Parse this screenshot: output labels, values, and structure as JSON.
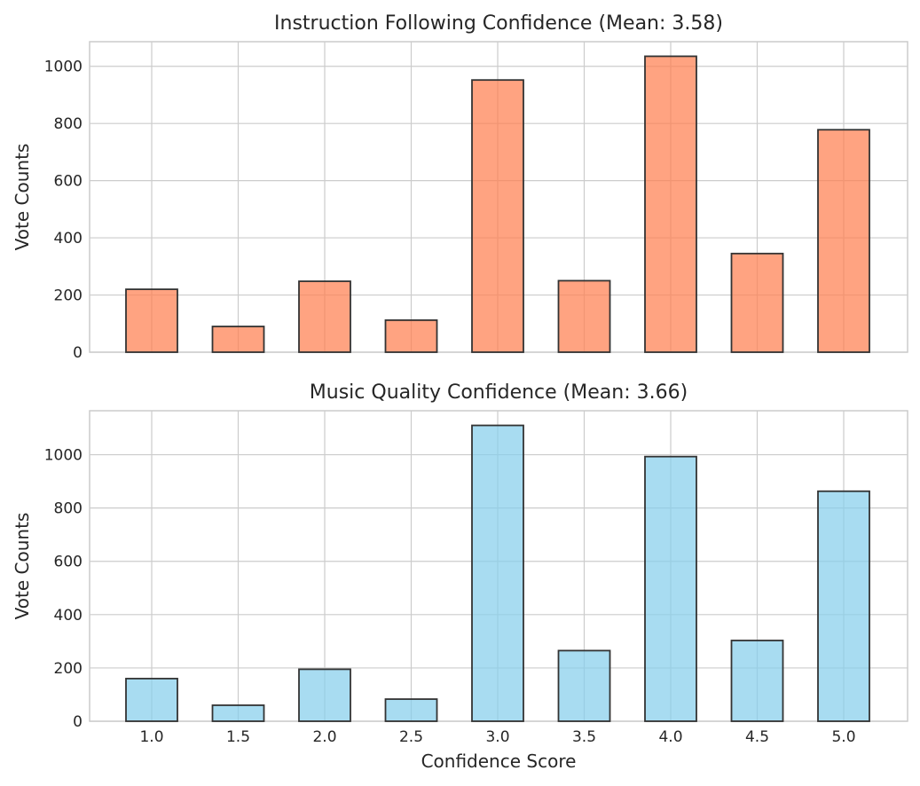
{
  "chart_data": [
    {
      "type": "bar",
      "title": "Instruction Following Confidence (Mean: 3.58)",
      "xlabel": "",
      "ylabel": "Vote Counts",
      "categories": [
        "1.0",
        "1.5",
        "2.0",
        "2.5",
        "3.0",
        "3.5",
        "4.0",
        "4.5",
        "5.0"
      ],
      "values": [
        220,
        90,
        248,
        112,
        952,
        250,
        1035,
        345,
        778
      ],
      "ylim": [
        0,
        1086
      ],
      "yticks": [
        0,
        200,
        400,
        600,
        800,
        1000
      ],
      "show_xtick_labels": false,
      "grid": true,
      "color": "#FF7F50"
    },
    {
      "type": "bar",
      "title": "Music Quality Confidence (Mean: 3.66)",
      "xlabel": "Confidence Score",
      "ylabel": "Vote Counts",
      "categories": [
        "1.0",
        "1.5",
        "2.0",
        "2.5",
        "3.0",
        "3.5",
        "4.0",
        "4.5",
        "5.0"
      ],
      "values": [
        160,
        60,
        195,
        83,
        1110,
        265,
        993,
        303,
        863
      ],
      "ylim": [
        0,
        1165
      ],
      "yticks": [
        0,
        200,
        400,
        600,
        800,
        1000
      ],
      "show_xtick_labels": true,
      "grid": true,
      "color": "#87CEEB"
    }
  ]
}
